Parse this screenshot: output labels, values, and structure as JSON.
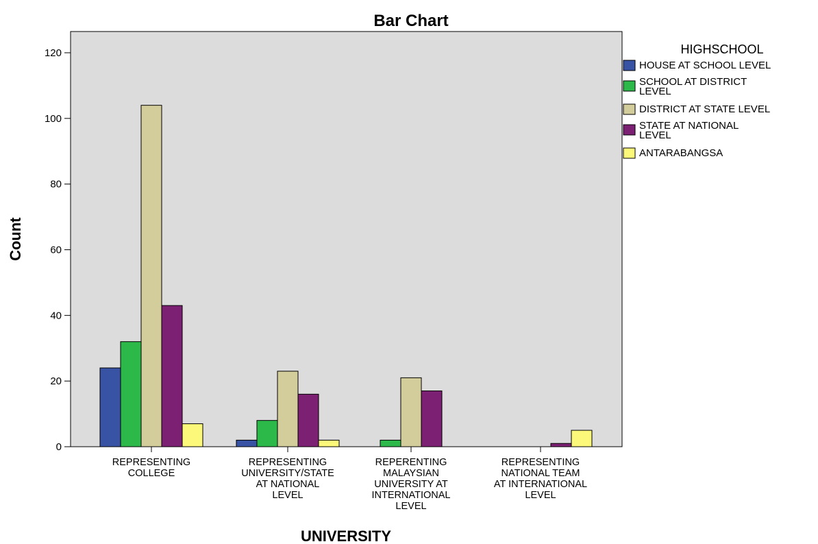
{
  "chart_data": {
    "type": "bar",
    "title": "Bar Chart",
    "xlabel": "UNIVERSITY",
    "ylabel": "Count",
    "ylim": [
      0,
      120
    ],
    "yticks": [
      "0",
      "20",
      "40",
      "60",
      "80",
      "100",
      "120"
    ],
    "grid": false,
    "plot_background": "#dcdcdc",
    "legend": {
      "title": "HIGHSCHOOL",
      "placement": "right"
    },
    "categories": [
      [
        "REPRESENTING",
        "COLLEGE"
      ],
      [
        "REPRESENTING",
        "UNIVERSITY/STATE",
        "AT NATIONAL",
        "LEVEL"
      ],
      [
        "REPERENTING",
        "MALAYSIAN",
        "UNIVERSITY AT",
        "INTERNATIONAL",
        "LEVEL"
      ],
      [
        "REPRESENTING",
        "NATIONAL TEAM",
        "AT INTERNATIONAL",
        "LEVEL"
      ]
    ],
    "series": [
      {
        "name": [
          "HOUSE AT SCHOOL LEVEL"
        ],
        "color": "#3953a4",
        "values": [
          24,
          2,
          0,
          0
        ]
      },
      {
        "name": [
          "SCHOOL AT DISTRICT",
          "LEVEL"
        ],
        "color": "#2db84a",
        "values": [
          32,
          8,
          2,
          0
        ]
      },
      {
        "name": [
          "DISTRICT AT STATE LEVEL"
        ],
        "color": "#d3cc9b",
        "values": [
          104,
          23,
          21,
          0
        ]
      },
      {
        "name": [
          "STATE AT NATIONAL",
          "LEVEL"
        ],
        "color": "#7b2072",
        "values": [
          43,
          16,
          17,
          1
        ]
      },
      {
        "name": [
          "ANTARABANGSA"
        ],
        "color": "#fbf87a",
        "values": [
          7,
          2,
          0,
          5
        ]
      }
    ]
  }
}
